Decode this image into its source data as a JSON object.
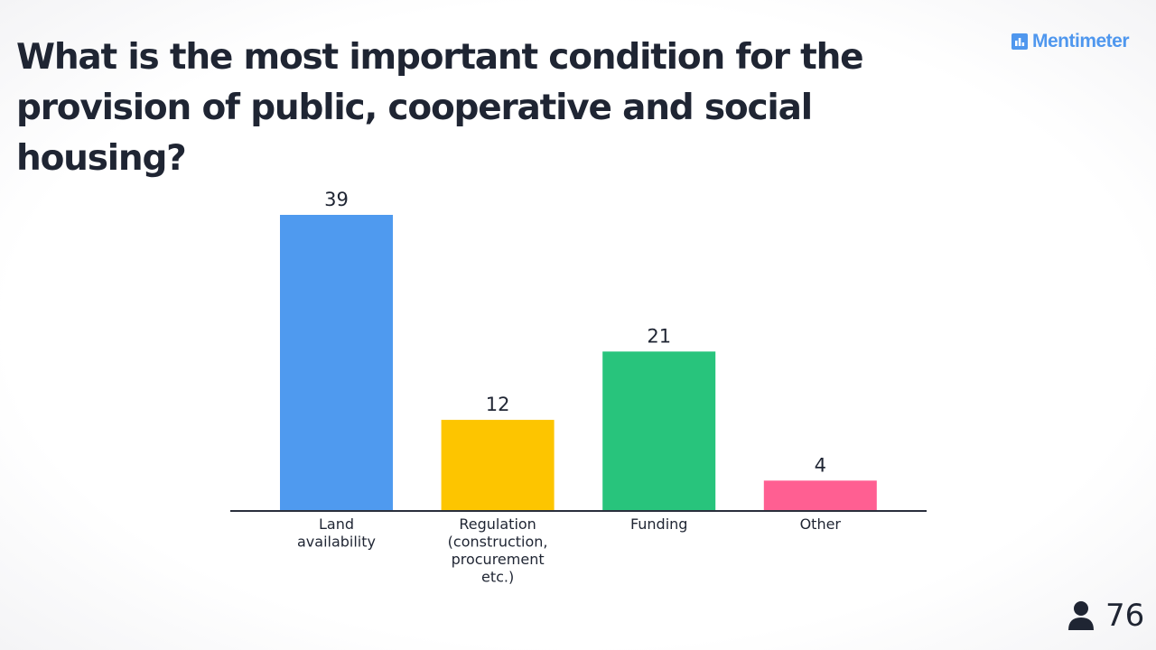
{
  "header": {
    "title_line1": "What is the most important condition for the",
    "title_line2": "provision of public, cooperative and social housing?"
  },
  "brand": {
    "name": "Mentimeter",
    "icon": "mentimeter-logo-icon",
    "color": "#4f97ee"
  },
  "participants": {
    "count": "76",
    "icon": "person-icon"
  },
  "chart_data": {
    "type": "bar",
    "title": "What is the most important condition for the provision of public, cooperative and social housing?",
    "categories": [
      [
        "Land",
        "availability"
      ],
      [
        "Regulation",
        "(construction,",
        "procurement",
        "etc.)"
      ],
      [
        "Funding"
      ],
      [
        "Other"
      ]
    ],
    "values": [
      39,
      12,
      21,
      4
    ],
    "colors": [
      "#4f9aef",
      "#fdc500",
      "#28c47c",
      "#ff5f92"
    ],
    "ylim": [
      0,
      39
    ],
    "grid": false,
    "legend": "none"
  }
}
